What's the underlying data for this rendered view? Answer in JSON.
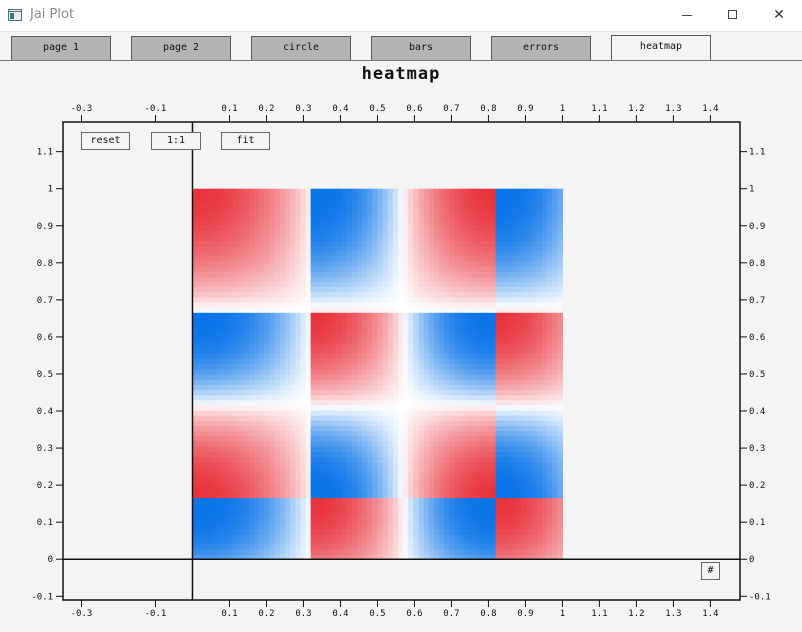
{
  "window": {
    "title": "Jai Plot"
  },
  "tabs": [
    {
      "label": "page 1",
      "active": false
    },
    {
      "label": "page 2",
      "active": false
    },
    {
      "label": "circle",
      "active": false
    },
    {
      "label": "bars",
      "active": false
    },
    {
      "label": "errors",
      "active": false
    },
    {
      "label": "heatmap",
      "active": true
    }
  ],
  "plot_buttons": {
    "reset": "reset",
    "one_to_one": "1:1",
    "fit": "fit",
    "grid_toggle": "#"
  },
  "colors": {
    "low": "#0a74e8",
    "mid": "#ffffff",
    "high": "#e8323c"
  },
  "chart_data": {
    "type": "heatmap",
    "title": "heatmap",
    "xlim": [
      -0.35,
      1.48
    ],
    "ylim": [
      -0.11,
      1.18
    ],
    "x_ticks_top": [
      "-0.3",
      "-0.1",
      "0.1",
      "0.2",
      "0.3",
      "0.4",
      "0.5",
      "0.6",
      "0.7",
      "0.8",
      "0.9",
      "1",
      "1.1",
      "1.2",
      "1.3",
      "1.4"
    ],
    "x_ticks_bottom": [
      "-0.3",
      "-0.1",
      "0.1",
      "0.2",
      "0.3",
      "0.4",
      "0.5",
      "0.6",
      "0.7",
      "0.8",
      "0.9",
      "1",
      "1.1",
      "1.2",
      "1.3",
      "1.4"
    ],
    "y_ticks": [
      "-0.1",
      "0",
      "0.1",
      "0.2",
      "0.3",
      "0.4",
      "0.5",
      "0.6",
      "0.7",
      "0.8",
      "0.9",
      "1",
      "1.1"
    ],
    "heatmap_extent": {
      "x": [
        0,
        1
      ],
      "y": [
        0,
        1
      ]
    },
    "grid_resolution": [
      72,
      72
    ],
    "color_scale": [
      "blue",
      "white",
      "red"
    ],
    "hot_spots": [
      [
        0.0,
        0.9
      ],
      [
        0.58,
        0.9
      ],
      [
        1.0,
        0.9
      ],
      [
        0.0,
        0.41
      ],
      [
        0.58,
        0.41
      ],
      [
        1.0,
        0.41
      ],
      [
        0.0,
        0.0
      ],
      [
        0.58,
        0.0
      ],
      [
        1.0,
        0.0
      ]
    ],
    "cold_lines_x": [
      0.32,
      0.82
    ],
    "cold_lines_y": [
      0.67,
      0.16
    ],
    "grid": false
  }
}
